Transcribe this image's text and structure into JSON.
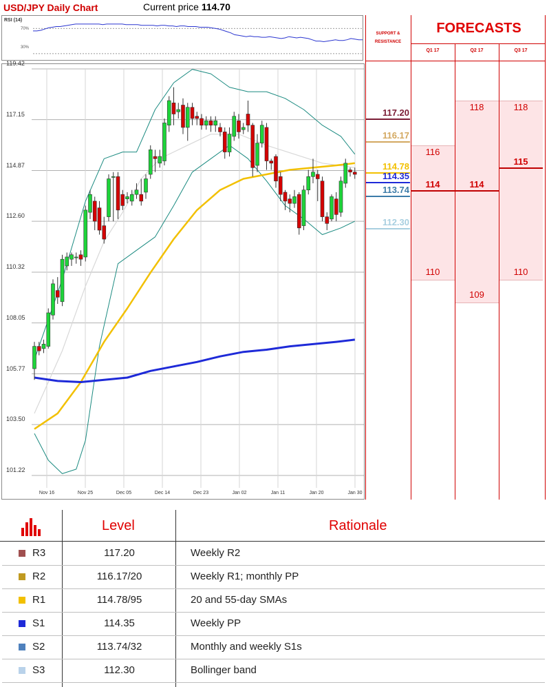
{
  "header": {
    "title": "USD/JPY Daily Chart",
    "price_label": "Current price",
    "price_value": "114.70"
  },
  "rsi": {
    "label": "RSI (14)",
    "level_high": "70%",
    "level_low": "30%",
    "values": [
      66,
      66,
      67,
      69,
      71,
      72,
      73,
      73,
      74,
      75,
      76,
      77,
      77,
      77,
      77,
      77,
      77,
      77,
      76,
      77,
      77,
      77,
      77,
      77,
      76,
      76,
      76,
      76,
      75,
      75,
      75,
      75,
      74,
      75,
      75,
      74,
      74,
      73,
      74,
      74,
      73,
      73,
      73,
      72,
      72,
      72,
      71,
      70,
      69,
      67,
      65,
      63,
      60,
      59,
      58,
      57,
      58,
      57,
      57,
      56,
      56,
      57,
      56,
      55,
      54,
      55,
      57,
      56,
      55,
      56,
      55,
      54,
      52,
      50,
      50,
      49,
      50,
      51,
      52,
      51,
      51,
      52,
      54,
      53,
      52,
      52
    ]
  },
  "colors": {
    "candle_up": "#1ed43a",
    "candle_down": "#d40000",
    "bollinger": "#1a8a80",
    "sma_fast": "#f2c000",
    "sma_slow": "#1e2ad8",
    "sma_gray": "#d8d8d8",
    "accent_red": "#d00000"
  },
  "chart_data": {
    "type": "candlestick",
    "ylim": [
      101.22,
      119.42
    ],
    "y_ticks": [
      "119.42",
      "117.15",
      "114.87",
      "112.60",
      "110.32",
      "108.05",
      "105.77",
      "103.50",
      "101.22"
    ],
    "x_ticks": [
      "Nov 16",
      "Nov 25",
      "Dec 05",
      "Dec 14",
      "Dec 23",
      "Jan 02",
      "Jan 11",
      "Jan 20",
      "Jan 30"
    ],
    "candles": [
      [
        106.0,
        107.0,
        105.5,
        107.2
      ],
      [
        107.0,
        106.8,
        106.6,
        107.2
      ],
      [
        106.9,
        107.1,
        106.7,
        107.3
      ],
      [
        107.0,
        108.5,
        106.9,
        108.7
      ],
      [
        108.4,
        109.8,
        108.2,
        110.0
      ],
      [
        109.5,
        109.2,
        108.9,
        110.1
      ],
      [
        109.0,
        110.9,
        108.8,
        111.1
      ],
      [
        110.6,
        111.0,
        110.4,
        111.2
      ],
      [
        110.9,
        111.1,
        110.6,
        111.2
      ],
      [
        111.0,
        111.0,
        110.7,
        111.2
      ],
      [
        111.1,
        110.9,
        110.6,
        111.3
      ],
      [
        111.0,
        113.1,
        110.8,
        113.3
      ],
      [
        113.0,
        113.8,
        112.7,
        114.0
      ],
      [
        113.5,
        112.6,
        112.2,
        113.7
      ],
      [
        113.2,
        112.2,
        112.0,
        113.5
      ],
      [
        112.4,
        111.8,
        111.6,
        112.8
      ],
      [
        112.8,
        114.5,
        112.6,
        114.7
      ],
      [
        114.6,
        114.6,
        112.6,
        114.8
      ],
      [
        114.6,
        113.1,
        112.7,
        114.8
      ],
      [
        113.8,
        113.3,
        113.1,
        114.0
      ],
      [
        113.6,
        113.7,
        113.4,
        113.9
      ],
      [
        113.5,
        113.8,
        113.3,
        114.0
      ],
      [
        113.8,
        114.0,
        113.6,
        114.3
      ],
      [
        113.8,
        113.5,
        113.3,
        114.5
      ],
      [
        113.9,
        114.5,
        113.6,
        114.7
      ],
      [
        114.7,
        115.8,
        114.5,
        116.0
      ],
      [
        115.5,
        115.4,
        114.8,
        115.8
      ],
      [
        115.2,
        115.5,
        115.0,
        115.8
      ],
      [
        115.3,
        117.0,
        115.1,
        117.2
      ],
      [
        116.9,
        118.0,
        116.6,
        118.2
      ],
      [
        117.9,
        117.4,
        116.9,
        118.6
      ],
      [
        117.5,
        117.6,
        117.2,
        117.9
      ],
      [
        117.8,
        116.8,
        116.5,
        118.1
      ],
      [
        116.8,
        117.7,
        116.2,
        117.9
      ],
      [
        117.7,
        117.2,
        116.9,
        117.9
      ],
      [
        117.3,
        117.2,
        116.9,
        117.5
      ],
      [
        117.2,
        116.9,
        116.7,
        117.4
      ],
      [
        116.9,
        117.1,
        116.7,
        117.3
      ],
      [
        117.1,
        116.9,
        116.6,
        117.3
      ],
      [
        116.9,
        117.1,
        116.6,
        117.3
      ],
      [
        116.8,
        116.6,
        116.4,
        117.0
      ],
      [
        116.6,
        115.7,
        115.4,
        116.8
      ],
      [
        115.7,
        116.5,
        115.5,
        116.8
      ],
      [
        116.4,
        117.3,
        116.2,
        117.5
      ],
      [
        117.1,
        116.6,
        116.3,
        117.4
      ],
      [
        116.7,
        116.8,
        116.5,
        117.0
      ],
      [
        117.4,
        116.9,
        116.6,
        118.0
      ],
      [
        116.9,
        115.0,
        114.6,
        117.0
      ],
      [
        115.1,
        116.1,
        114.8,
        116.5
      ],
      [
        116.1,
        116.9,
        115.9,
        117.1
      ],
      [
        116.8,
        115.3,
        114.9,
        117.0
      ],
      [
        115.3,
        115.2,
        114.9,
        115.4
      ],
      [
        115.5,
        114.4,
        114.1,
        115.6
      ],
      [
        114.6,
        113.8,
        113.5,
        114.8
      ],
      [
        113.9,
        113.5,
        113.1,
        114.0
      ],
      [
        113.6,
        113.4,
        113.0,
        113.8
      ],
      [
        113.4,
        113.7,
        113.2,
        114.0
      ],
      [
        113.8,
        112.3,
        112.0,
        113.9
      ],
      [
        112.4,
        114.0,
        112.2,
        114.2
      ],
      [
        114.0,
        114.6,
        113.8,
        114.9
      ],
      [
        114.6,
        114.8,
        114.3,
        115.4
      ],
      [
        114.7,
        114.5,
        113.5,
        114.9
      ],
      [
        114.4,
        112.8,
        112.6,
        114.6
      ],
      [
        112.8,
        112.5,
        112.2,
        113.0
      ],
      [
        112.7,
        113.7,
        112.6,
        113.8
      ],
      [
        113.6,
        112.9,
        112.6,
        113.9
      ],
      [
        113.0,
        114.4,
        112.8,
        114.6
      ],
      [
        114.3,
        115.2,
        114.1,
        115.4
      ],
      [
        114.9,
        114.8,
        114.6,
        115.0
      ],
      [
        114.8,
        114.7,
        114.5,
        115.0
      ]
    ],
    "bollinger_upper": [
      [
        0,
        106.4
      ],
      [
        6,
        110.0
      ],
      [
        11,
        113.5
      ],
      [
        15,
        115.4
      ],
      [
        19,
        115.7
      ],
      [
        22,
        115.7
      ],
      [
        26,
        117.6
      ],
      [
        30,
        118.8
      ],
      [
        34,
        119.4
      ],
      [
        38,
        119.2
      ],
      [
        42,
        118.6
      ],
      [
        46,
        118.4
      ],
      [
        50,
        118.4
      ],
      [
        54,
        118.1
      ],
      [
        58,
        117.6
      ],
      [
        62,
        116.9
      ],
      [
        66,
        116.4
      ],
      [
        69,
        115.6
      ]
    ],
    "bollinger_lower": [
      [
        0,
        103.1
      ],
      [
        3,
        101.9
      ],
      [
        6,
        101.3
      ],
      [
        9,
        101.5
      ],
      [
        11,
        102.8
      ],
      [
        14,
        107.0
      ],
      [
        18,
        110.7
      ],
      [
        22,
        111.3
      ],
      [
        26,
        111.9
      ],
      [
        30,
        113.3
      ],
      [
        34,
        114.8
      ],
      [
        38,
        115.4
      ],
      [
        42,
        116.0
      ],
      [
        46,
        115.4
      ],
      [
        50,
        114.4
      ],
      [
        54,
        113.3
      ],
      [
        58,
        112.7
      ],
      [
        62,
        112.0
      ],
      [
        66,
        112.3
      ],
      [
        69,
        112.6
      ]
    ],
    "sma_gray": [
      [
        0,
        104.0
      ],
      [
        6,
        106.8
      ],
      [
        11,
        109.7
      ],
      [
        15,
        111.7
      ],
      [
        19,
        113.0
      ],
      [
        23,
        114.5
      ],
      [
        27,
        115.4
      ],
      [
        32,
        115.9
      ],
      [
        38,
        116.5
      ],
      [
        44,
        116.5
      ],
      [
        50,
        116.0
      ],
      [
        56,
        115.6
      ],
      [
        62,
        115.2
      ],
      [
        69,
        115.0
      ]
    ],
    "sma_20": [
      [
        0,
        103.3
      ],
      [
        5,
        104.0
      ],
      [
        10,
        105.4
      ],
      [
        15,
        107.2
      ],
      [
        20,
        108.7
      ],
      [
        25,
        110.3
      ],
      [
        30,
        111.8
      ],
      [
        35,
        113.1
      ],
      [
        40,
        114.0
      ],
      [
        45,
        114.5
      ],
      [
        50,
        114.7
      ],
      [
        55,
        114.9
      ],
      [
        60,
        115.0
      ],
      [
        65,
        115.1
      ],
      [
        69,
        115.2
      ]
    ],
    "sma_100": [
      [
        0,
        105.6
      ],
      [
        5,
        105.45
      ],
      [
        10,
        105.4
      ],
      [
        15,
        105.5
      ],
      [
        20,
        105.6
      ],
      [
        25,
        105.9
      ],
      [
        30,
        106.1
      ],
      [
        35,
        106.3
      ],
      [
        40,
        106.55
      ],
      [
        45,
        106.75
      ],
      [
        50,
        106.85
      ],
      [
        55,
        107.0
      ],
      [
        60,
        107.1
      ],
      [
        65,
        107.2
      ],
      [
        69,
        107.3
      ]
    ]
  },
  "support_resistance": {
    "title_line1": "SUPPORT &",
    "title_line2": "RESISTANCE",
    "levels": [
      {
        "label": "117.20",
        "value": 117.2,
        "color": "#7a1c34"
      },
      {
        "label": "116.17",
        "value": 116.17,
        "color": "#d3a860"
      },
      {
        "label": "114.78",
        "value": 114.78,
        "color": "#f2c000"
      },
      {
        "label": "114.35",
        "value": 114.35,
        "color": "#1e2ad8"
      },
      {
        "label": "113.74",
        "value": 113.74,
        "color": "#3c7ba8"
      },
      {
        "label": "112.30",
        "value": 112.3,
        "color": "#a8cfe0"
      }
    ]
  },
  "forecasts": {
    "title": "FORECASTS",
    "quarters": [
      {
        "name": "Q1 17",
        "high": "116",
        "mid": "114",
        "low": "110",
        "high_v": 116,
        "mid_v": 114,
        "low_v": 110
      },
      {
        "name": "Q2 17",
        "high": "118",
        "mid": "114",
        "low": "109",
        "high_v": 118,
        "mid_v": 114,
        "low_v": 109
      },
      {
        "name": "Q3 17",
        "high": "118",
        "mid": "115",
        "low": "110",
        "high_v": 118,
        "mid_v": 115,
        "low_v": 110
      }
    ]
  },
  "table": {
    "header_level": "Level",
    "header_rationale": "Rationale",
    "rows": [
      {
        "code": "R3",
        "level": "117.20",
        "rationale": "Weekly R2",
        "color": "#a05050"
      },
      {
        "code": "R2",
        "level": "116.17/20",
        "rationale": "Weekly R1; monthly PP",
        "color": "#c09a20"
      },
      {
        "code": "R1",
        "level": "114.78/95",
        "rationale": "20 and 55-day SMAs",
        "color": "#f2c000"
      },
      {
        "code": "S1",
        "level": "114.35",
        "rationale": "Weekly PP",
        "color": "#1e2ad8"
      },
      {
        "code": "S2",
        "level": "113.74/32",
        "rationale": "Monthly and weekly S1s",
        "color": "#4f81bd"
      },
      {
        "code": "S3",
        "level": "112.30",
        "rationale": "Bollinger band",
        "color": "#b9d2ea"
      }
    ]
  }
}
